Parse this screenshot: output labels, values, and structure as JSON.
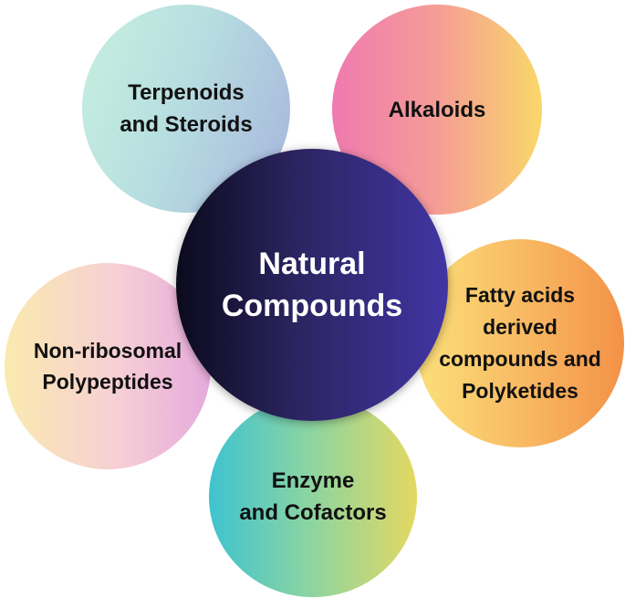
{
  "diagram": {
    "center": {
      "lines": [
        "Natural",
        "Compounds"
      ]
    },
    "nodes": {
      "terpenoids": {
        "lines": [
          "Terpenoids",
          "and Steroids"
        ]
      },
      "alkaloids": {
        "lines": [
          "Alkaloids"
        ]
      },
      "fatty_acids": {
        "lines": [
          "Fatty acids",
          "derived",
          "compounds and",
          "Polyketides"
        ]
      },
      "enzyme": {
        "lines": [
          "Enzyme",
          "and Cofactors"
        ]
      },
      "nrp": {
        "lines": [
          "Non-ribosomal",
          "Polypeptides"
        ]
      }
    }
  }
}
